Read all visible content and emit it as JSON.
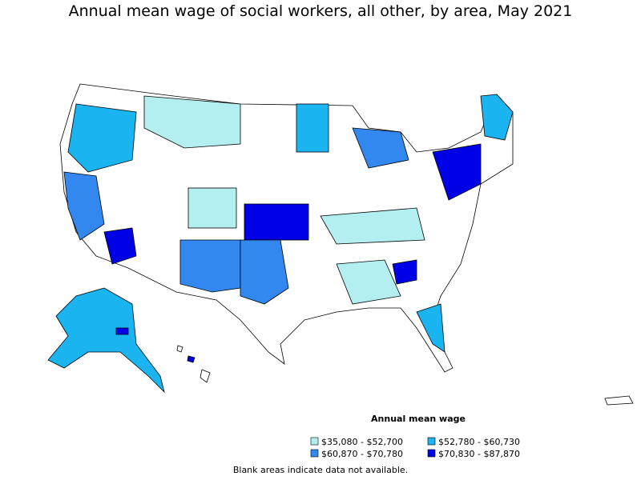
{
  "title": "Annual mean wage of social workers, all other, by area, May 2021",
  "legend": {
    "title": "Annual mean wage",
    "items": [
      {
        "label": "$35,080 - $52,700",
        "color": "#b3eff0"
      },
      {
        "label": "$52,780 - $60,730",
        "color": "#1ab4f0"
      },
      {
        "label": "$60,870 - $70,780",
        "color": "#3388f0"
      },
      {
        "label": "$70,830 - $87,870",
        "color": "#0000e6"
      }
    ]
  },
  "note": "Blank areas indicate data not available."
}
